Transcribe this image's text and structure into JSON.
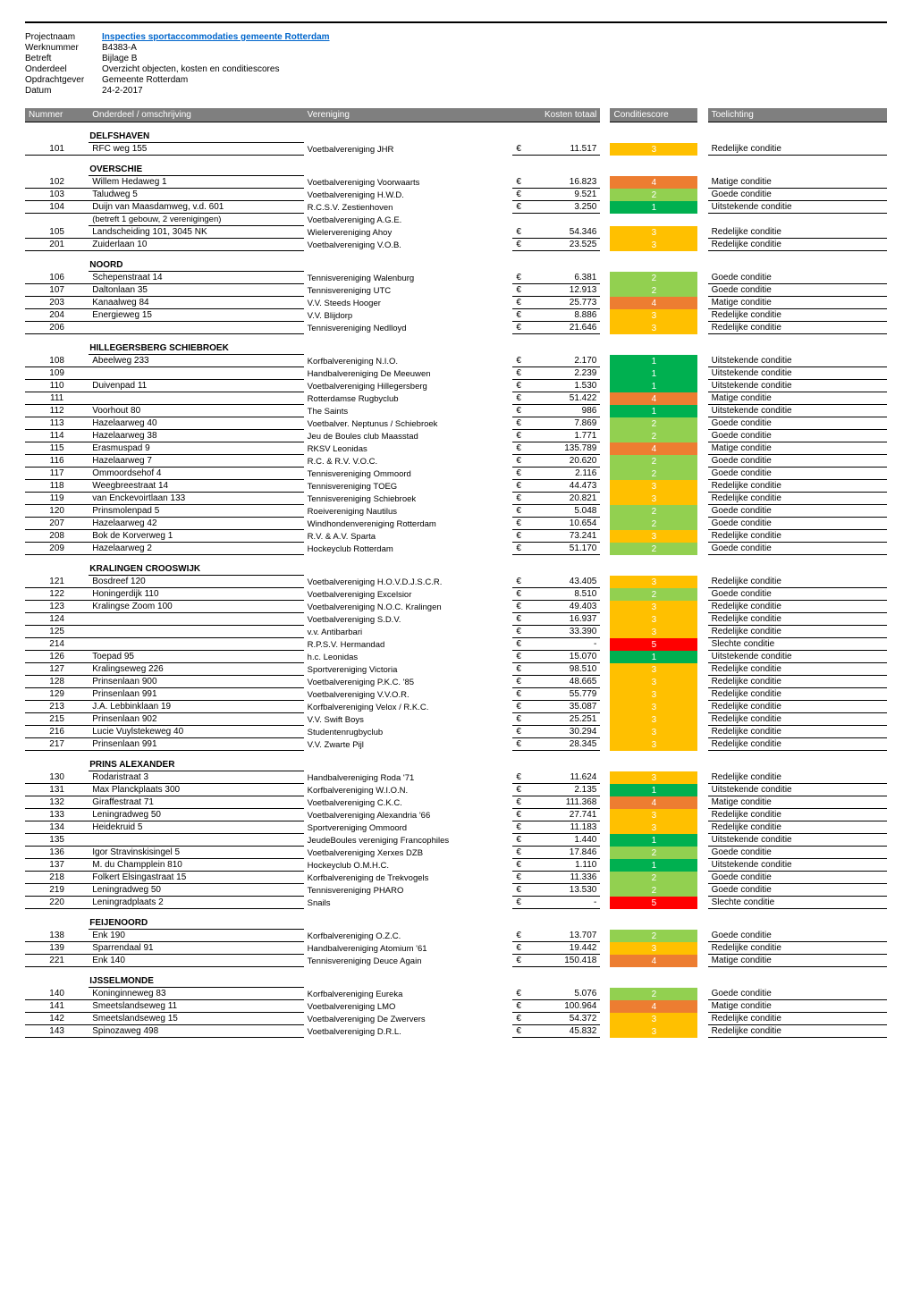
{
  "colors": {
    "header_bg": "#7f7f7f",
    "header_fg": "#ffffff",
    "link": "#0066cc",
    "score_1": "#00b050",
    "score_2": "#92d050",
    "score_3": "#ffc000",
    "score_4": "#ed7d31",
    "score_5": "#ff0000",
    "text": "#000000",
    "background": "#ffffff",
    "rule": "#000000"
  },
  "metadata": {
    "rows": [
      {
        "label": "Projectnaam",
        "value": "Inspecties sportaccommodaties gemeente Rotterdam",
        "is_title": true
      },
      {
        "label": "Werknummer",
        "value": "B4383-A"
      },
      {
        "label": "Betreft",
        "value": "Bijlage B"
      },
      {
        "label": "Onderdeel",
        "value": "Overzicht objecten, kosten en conditiescores"
      },
      {
        "label": "Opdrachtgever",
        "value": "Gemeente Rotterdam"
      },
      {
        "label": "Datum",
        "value": "24-2-2017"
      }
    ]
  },
  "columns": {
    "nummer": "Nummer",
    "onderdeel": "Onderdeel / omschrijving",
    "vereniging": "Vereniging",
    "kosten": "Kosten totaal",
    "conditie": "Conditiescore",
    "toelichting": "Toelichting"
  },
  "currency": "€",
  "sections": [
    {
      "name": "DELFSHAVEN",
      "rows": [
        {
          "num": "101",
          "ond": "RFC weg 155",
          "ver": "Voetbalvereniging  JHR",
          "kos": "11.517",
          "con": 3,
          "toe": "Redelijke conditie"
        }
      ]
    },
    {
      "name": "OVERSCHIE",
      "rows": [
        {
          "num": "102",
          "ond": "Willem Hedaweg 1",
          "ver": "Voetbalvereniging  Voorwaarts",
          "kos": "16.823",
          "con": 4,
          "toe": "Matige conditie"
        },
        {
          "num": "103",
          "ond": "Taludweg 5",
          "ver": "Voetbalvereniging  H.W.D.",
          "kos": "9.521",
          "con": 2,
          "toe": "Goede conditie"
        },
        {
          "num": "104",
          "ond": "Duijn van Maasdamweg, v.d. 601",
          "ver": "R.C.S.V. Zestienhoven",
          "kos": "3.250",
          "con": 1,
          "toe": "Uitstekende conditie"
        },
        {
          "num": "",
          "ond": "(betreft 1 gebouw, 2 verenigingen)",
          "ver": "Voetbalvereniging A.G.E.",
          "kos": "",
          "con": null,
          "toe": "",
          "sub": true
        },
        {
          "num": "105",
          "ond": "Landscheiding 101, 3045 NK",
          "ver": "Wielervereniging Ahoy",
          "kos": "54.346",
          "con": 3,
          "toe": "Redelijke conditie"
        },
        {
          "num": "201",
          "ond": "Zuiderlaan 10",
          "ver": "Voetbalvereniging V.O.B.",
          "kos": "23.525",
          "con": 3,
          "toe": "Redelijke conditie"
        }
      ]
    },
    {
      "name": "NOORD",
      "rows": [
        {
          "num": "106",
          "ond": "Schepenstraat 14",
          "ver": "Tennisvereniging Walenburg",
          "kos": "6.381",
          "con": 2,
          "toe": "Goede conditie"
        },
        {
          "num": "107",
          "ond": "Daltonlaan 35",
          "ver": "Tennisvereniging UTC",
          "kos": "12.913",
          "con": 2,
          "toe": "Goede conditie"
        },
        {
          "num": "203",
          "ond": "Kanaalweg 84",
          "ver": "V.V. Steeds Hooger",
          "kos": "25.773",
          "con": 4,
          "toe": "Matige conditie"
        },
        {
          "num": "204",
          "ond": "Energieweg 15",
          "ver": "V.V. Blijdorp",
          "kos": "8.886",
          "con": 3,
          "toe": "Redelijke conditie"
        },
        {
          "num": "206",
          "ond": "",
          "ver": "Tennisvereniging Nedlloyd",
          "kos": "21.646",
          "con": 3,
          "toe": "Redelijke conditie"
        }
      ]
    },
    {
      "name": "HILLEGERSBERG SCHIEBROEK",
      "rows": [
        {
          "num": "108",
          "ond": "Abeelweg 233",
          "ver": "Korfbalvereniging  N.I.O.",
          "kos": "2.170",
          "con": 1,
          "toe": "Uitstekende conditie"
        },
        {
          "num": "109",
          "ond": "",
          "ver": "Handbalvereniging De Meeuwen",
          "kos": "2.239",
          "con": 1,
          "toe": "Uitstekende conditie"
        },
        {
          "num": "110",
          "ond": "Duivenpad 11",
          "ver": "Voetbalvereniging Hillegersberg",
          "kos": "1.530",
          "con": 1,
          "toe": "Uitstekende conditie"
        },
        {
          "num": "111",
          "ond": "",
          "ver": "Rotterdamse Rugbyclub",
          "kos": "51.422",
          "con": 4,
          "toe": "Matige conditie"
        },
        {
          "num": "112",
          "ond": "Voorhout 80",
          "ver": "The Saints",
          "kos": "986",
          "con": 1,
          "toe": "Uitstekende conditie"
        },
        {
          "num": "113",
          "ond": "Hazelaarweg 40",
          "ver": "Voetbalver. Neptunus / Schiebroek",
          "kos": "7.869",
          "con": 2,
          "toe": "Goede conditie"
        },
        {
          "num": "114",
          "ond": "Hazelaarweg 38",
          "ver": "Jeu de Boules club Maasstad",
          "kos": "1.771",
          "con": 2,
          "toe": "Goede conditie"
        },
        {
          "num": "115",
          "ond": "Erasmuspad 9",
          "ver": "RKSV  Leonidas",
          "kos": "135.789",
          "con": 4,
          "toe": "Matige conditie"
        },
        {
          "num": "116",
          "ond": "Hazelaarweg 7",
          "ver": "R.C. & R.V.  V.O.C.",
          "kos": "20.620",
          "con": 2,
          "toe": "Goede conditie"
        },
        {
          "num": "117",
          "ond": "Ommoordsehof 4",
          "ver": "Tennisvereniging Ommoord",
          "kos": "2.116",
          "con": 2,
          "toe": "Goede conditie"
        },
        {
          "num": "118",
          "ond": "Weegbreestraat 14",
          "ver": "Tennisvereniging TOEG",
          "kos": "44.473",
          "con": 3,
          "toe": "Redelijke conditie"
        },
        {
          "num": "119",
          "ond": "van Enckevoirtlaan 133",
          "ver": "Tennisvereniging Schiebroek",
          "kos": "20.821",
          "con": 3,
          "toe": "Redelijke conditie"
        },
        {
          "num": "120",
          "ond": "Prinsmolenpad 5",
          "ver": "Roeivereniging Nautilus",
          "kos": "5.048",
          "con": 2,
          "toe": "Goede conditie"
        },
        {
          "num": "207",
          "ond": "Hazelaarweg 42",
          "ver": "Windhondenvereniging Rotterdam",
          "kos": "10.654",
          "con": 2,
          "toe": "Goede conditie"
        },
        {
          "num": "208",
          "ond": "Bok de Korverweg 1",
          "ver": "R.V. & A.V. Sparta",
          "kos": "73.241",
          "con": 3,
          "toe": "Redelijke conditie"
        },
        {
          "num": "209",
          "ond": "Hazelaarweg 2",
          "ver": "Hockeyclub Rotterdam",
          "kos": "51.170",
          "con": 2,
          "toe": "Goede conditie"
        }
      ]
    },
    {
      "name": "KRALINGEN CROOSWIJK",
      "rows": [
        {
          "num": "121",
          "ond": "Bosdreef 120",
          "ver": "Voetbalvereniging H.O.V.D.J.S.C.R.",
          "kos": "43.405",
          "con": 3,
          "toe": "Redelijke conditie"
        },
        {
          "num": "122",
          "ond": "Honingerdijk 110",
          "ver": "Voetbalvereniging  Excelsior",
          "kos": "8.510",
          "con": 2,
          "toe": "Goede conditie"
        },
        {
          "num": "123",
          "ond": "Kralingse Zoom 100",
          "ver": "Voetbalvereniging  N.O.C. Kralingen",
          "kos": "49.403",
          "con": 3,
          "toe": "Redelijke conditie"
        },
        {
          "num": "124",
          "ond": "",
          "ver": "Voetbalvereniging  S.D.V.",
          "kos": "16.937",
          "con": 3,
          "toe": "Redelijke conditie"
        },
        {
          "num": "125",
          "ond": "",
          "ver": "v.v. Antibarbari",
          "kos": "33.390",
          "con": 3,
          "toe": "Redelijke conditie"
        },
        {
          "num": "214",
          "ond": "",
          "ver": "R.P.S.V. Hermandad",
          "kos": "-",
          "con": 5,
          "toe": "Slechte conditie"
        },
        {
          "num": "126",
          "ond": "Toepad 95",
          "ver": "h.c. Leonidas",
          "kos": "15.070",
          "con": 1,
          "toe": "Uitstekende conditie"
        },
        {
          "num": "127",
          "ond": "Kralingseweg 226",
          "ver": "Sportvereniging  Victoria",
          "kos": "98.510",
          "con": 3,
          "toe": "Redelijke conditie"
        },
        {
          "num": "128",
          "ond": "Prinsenlaan 900",
          "ver": "Voetbalvereniging  P.K.C. '85",
          "kos": "48.665",
          "con": 3,
          "toe": "Redelijke conditie"
        },
        {
          "num": "129",
          "ond": "Prinsenlaan 991",
          "ver": "Voetbalvereniging  V.V.O.R.",
          "kos": "55.779",
          "con": 3,
          "toe": "Redelijke conditie"
        },
        {
          "num": "213",
          "ond": "J.A. Lebbinklaan 19",
          "ver": "Korfbalvereniging Velox / R.K.C.",
          "kos": "35.087",
          "con": 3,
          "toe": "Redelijke conditie"
        },
        {
          "num": "215",
          "ond": "Prinsenlaan 902",
          "ver": "V.V. Swift Boys",
          "kos": "25.251",
          "con": 3,
          "toe": "Redelijke conditie"
        },
        {
          "num": "216",
          "ond": "Lucie Vuylstekeweg 40",
          "ver": "Studentenrugbyclub",
          "kos": "30.294",
          "con": 3,
          "toe": "Redelijke conditie"
        },
        {
          "num": "217",
          "ond": "Prinsenlaan 991",
          "ver": "V.V. Zwarte Pijl",
          "kos": "28.345",
          "con": 3,
          "toe": "Redelijke conditie"
        }
      ]
    },
    {
      "name": "PRINS ALEXANDER",
      "rows": [
        {
          "num": "130",
          "ond": "Rodaristraat 3",
          "ver": "Handbalvereniging  Roda '71",
          "kos": "11.624",
          "con": 3,
          "toe": "Redelijke conditie"
        },
        {
          "num": "131",
          "ond": "Max Planckplaats 300",
          "ver": "Korfbalvereniging  W.I.O.N.",
          "kos": "2.135",
          "con": 1,
          "toe": "Uitstekende conditie"
        },
        {
          "num": "132",
          "ond": "Giraffestraat 71",
          "ver": "Voetbalvereniging  C.K.C.",
          "kos": "111.368",
          "con": 4,
          "toe": "Matige conditie"
        },
        {
          "num": "133",
          "ond": "Leningradweg 50",
          "ver": "Voetbalvereniging  Alexandria '66",
          "kos": "27.741",
          "con": 3,
          "toe": "Redelijke conditie"
        },
        {
          "num": "134",
          "ond": "Heidekruid 5",
          "ver": "Sportvereniging  Ommoord",
          "kos": "11.183",
          "con": 3,
          "toe": "Redelijke conditie"
        },
        {
          "num": "135",
          "ond": "",
          "ver": "JeudeBoules vereniging  Francophiles",
          "kos": "1.440",
          "con": 1,
          "toe": "Uitstekende conditie"
        },
        {
          "num": "136",
          "ond": "Igor Stravinskisingel 5",
          "ver": "Voetbalvereniging  Xerxes DZB",
          "kos": "17.846",
          "con": 2,
          "toe": "Goede conditie"
        },
        {
          "num": "137",
          "ond": "M. du Champplein 810",
          "ver": "Hockeyclub  O.M.H.C.",
          "kos": "1.110",
          "con": 1,
          "toe": "Uitstekende conditie"
        },
        {
          "num": "218",
          "ond": "Folkert Elsingastraat 15",
          "ver": "Korfbalvereniging de Trekvogels",
          "kos": "11.336",
          "con": 2,
          "toe": "Goede conditie"
        },
        {
          "num": "219",
          "ond": "Leningradweg 50",
          "ver": "Tennisvereniging PHARO",
          "kos": "13.530",
          "con": 2,
          "toe": "Goede conditie"
        },
        {
          "num": "220",
          "ond": "Leningradplaats 2",
          "ver": "Snails",
          "kos": "-",
          "con": 5,
          "toe": "Slechte conditie"
        }
      ]
    },
    {
      "name": "FEIJENOORD",
      "rows": [
        {
          "num": "138",
          "ond": "Enk 190",
          "ver": "Korfbalvereniging  O.Z.C.",
          "kos": "13.707",
          "con": 2,
          "toe": "Goede conditie"
        },
        {
          "num": "139",
          "ond": "Sparrendaal 91",
          "ver": "Handbalvereniging  Atomium '61",
          "kos": "19.442",
          "con": 3,
          "toe": "Redelijke conditie"
        },
        {
          "num": "221",
          "ond": "Enk 140",
          "ver": "Tennisvereniging Deuce Again",
          "kos": "150.418",
          "con": 4,
          "toe": "Matige conditie"
        }
      ]
    },
    {
      "name": "IJSSELMONDE",
      "rows": [
        {
          "num": "140",
          "ond": "Koninginneweg 83",
          "ver": "Korfbalvereniging  Eureka",
          "kos": "5.076",
          "con": 2,
          "toe": "Goede conditie"
        },
        {
          "num": "141",
          "ond": "Smeetslandseweg 11",
          "ver": "Voetbalvereniging LMO",
          "kos": "100.964",
          "con": 4,
          "toe": "Matige conditie"
        },
        {
          "num": "142",
          "ond": "Smeetslandseweg 15",
          "ver": "Voetbalvereniging  De Zwervers",
          "kos": "54.372",
          "con": 3,
          "toe": "Redelijke conditie"
        },
        {
          "num": "143",
          "ond": "Spinozaweg 498",
          "ver": "Voetbalvereniging  D.R.L.",
          "kos": "45.832",
          "con": 3,
          "toe": "Redelijke conditie"
        }
      ]
    }
  ]
}
